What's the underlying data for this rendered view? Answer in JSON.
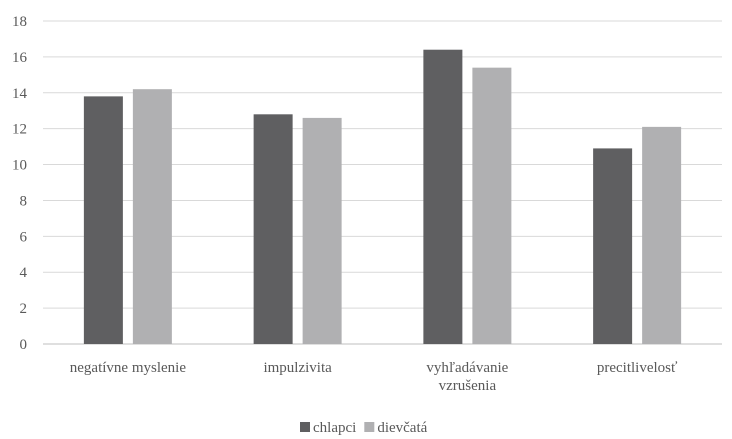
{
  "chart_data": {
    "type": "bar",
    "categories": [
      [
        "negatívne myslenie"
      ],
      [
        "impulzivita"
      ],
      [
        "vyhľadávanie",
        "vzrušenia"
      ],
      [
        "precitlivelosť"
      ]
    ],
    "series": [
      {
        "name": "chlapci",
        "values": [
          13.8,
          12.8,
          16.4,
          10.9
        ],
        "color": "#5f5f61"
      },
      {
        "name": "dievčatá",
        "values": [
          14.2,
          12.6,
          15.4,
          12.1
        ],
        "color": "#b0b0b2"
      }
    ],
    "yticks": [
      "0",
      "2",
      "4",
      "6",
      "8",
      "10",
      "12",
      "14",
      "16",
      "18"
    ],
    "ylim": [
      0,
      18
    ],
    "grid": true,
    "gridline_color": "#d9d9d9",
    "legend_position": "bottom"
  }
}
